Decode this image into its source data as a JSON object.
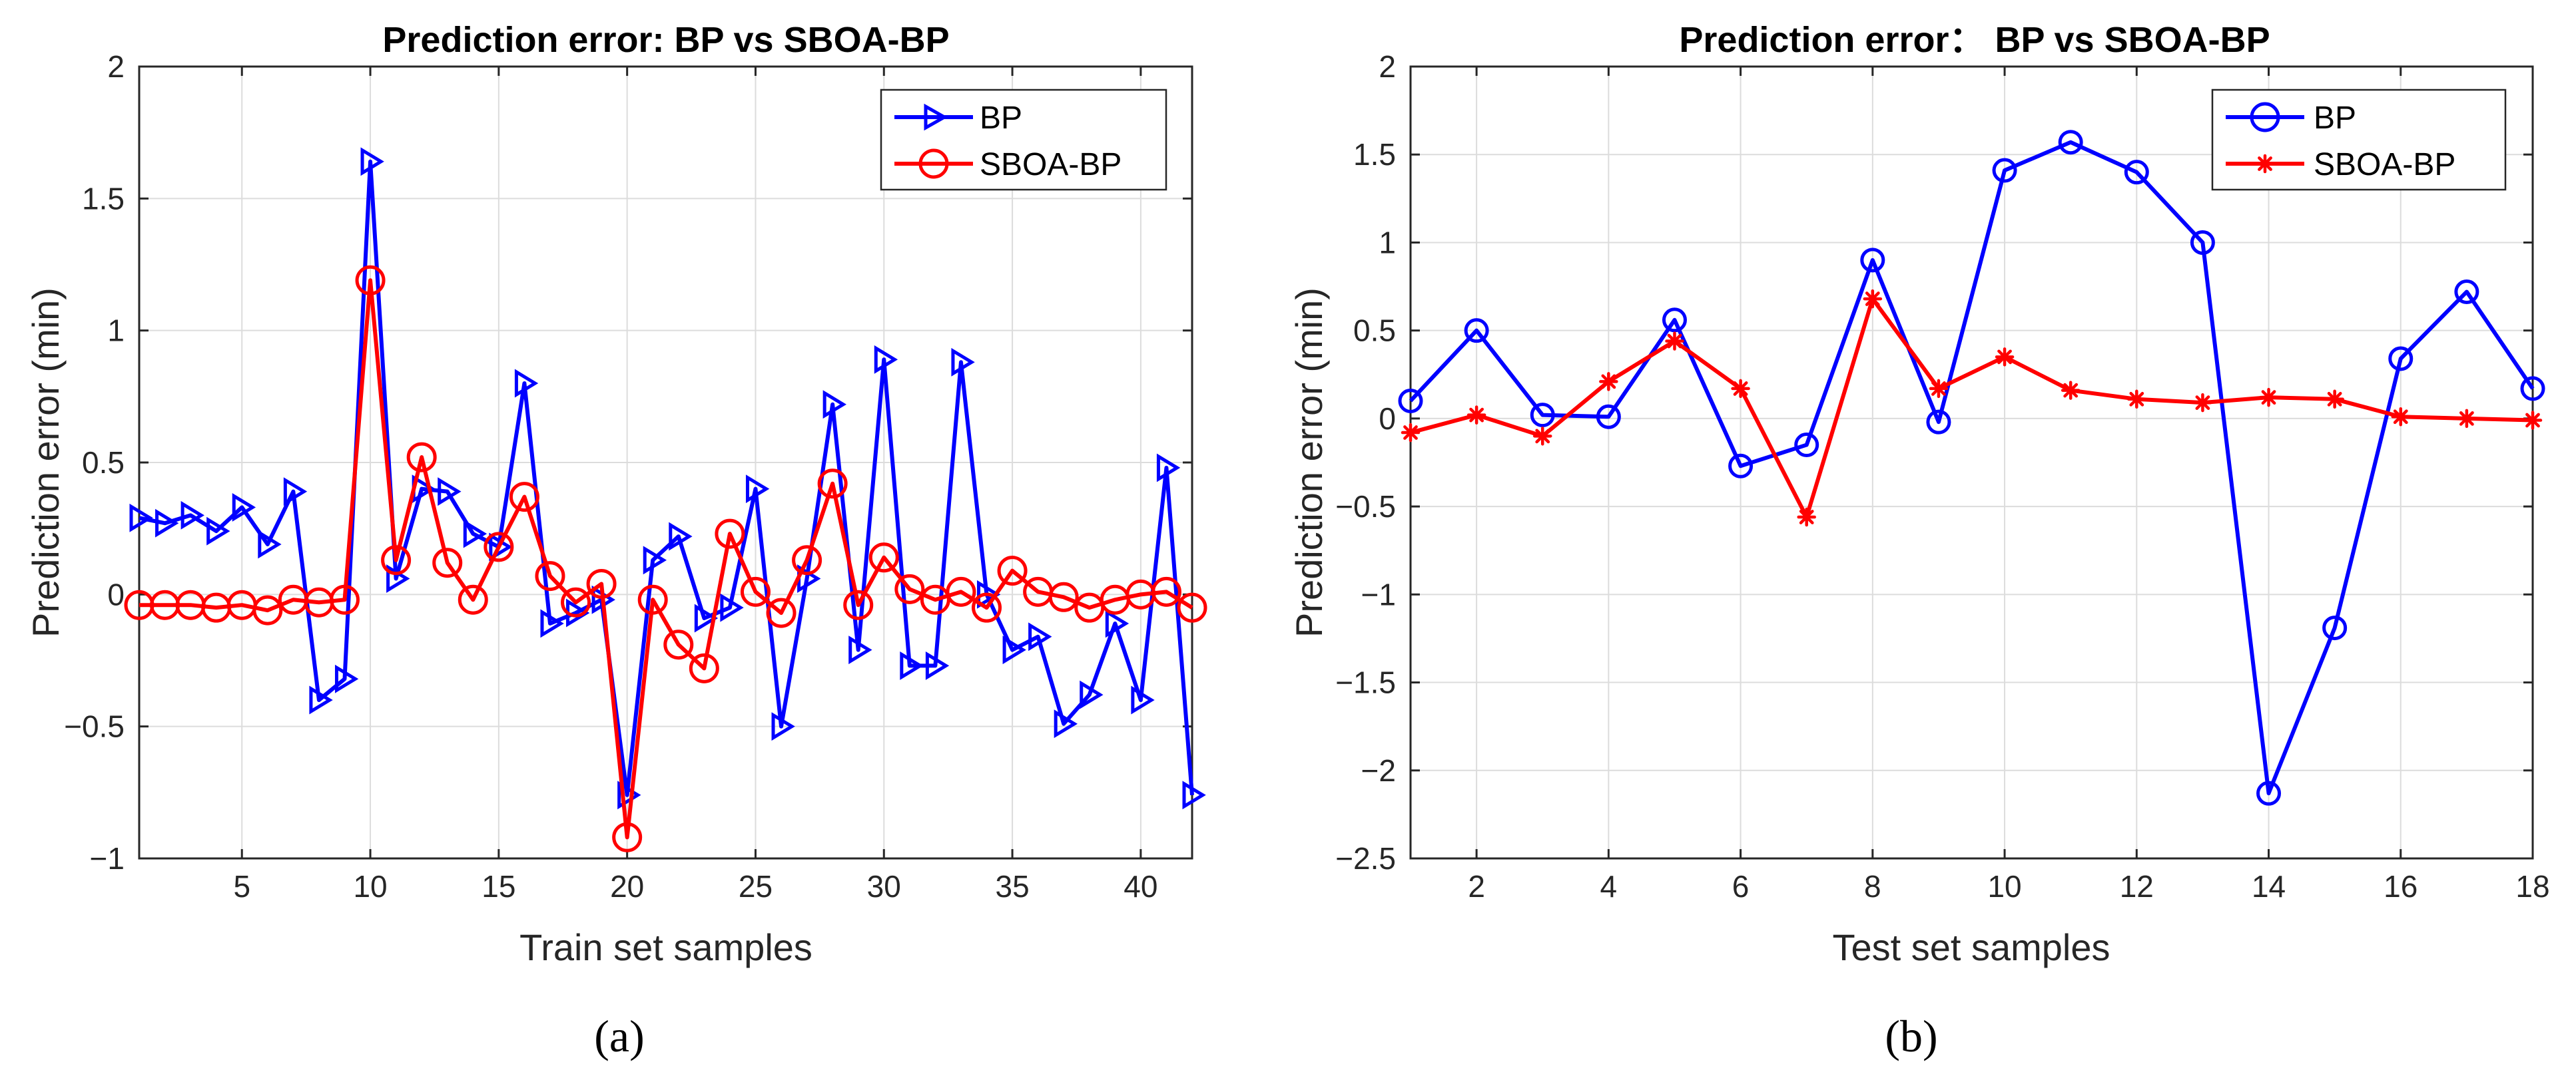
{
  "chart_data": [
    {
      "type": "line",
      "panel_label": "(a)",
      "title": "Prediction error: BP vs SBOA-BP",
      "xlabel": "Train set samples",
      "ylabel": "Prediction error (min)",
      "xlim": [
        1,
        42
      ],
      "ylim": [
        -1,
        2
      ],
      "xticks": [
        5,
        10,
        15,
        20,
        25,
        30,
        35,
        40
      ],
      "xtick_labels": [
        "5",
        "10",
        "15",
        "20",
        "25",
        "30",
        "35",
        "40"
      ],
      "yticks": [
        -1,
        -0.5,
        0,
        0.5,
        1,
        1.5,
        2
      ],
      "ytick_labels": [
        "−1",
        "−0.5",
        "0",
        "0.5",
        "1",
        "1.5",
        "2"
      ],
      "grid": true,
      "legend_position": "top-right",
      "x": [
        1,
        2,
        3,
        4,
        5,
        6,
        7,
        8,
        9,
        10,
        11,
        12,
        13,
        14,
        15,
        16,
        17,
        18,
        19,
        20,
        21,
        22,
        23,
        24,
        25,
        26,
        27,
        28,
        29,
        30,
        31,
        32,
        33,
        34,
        35,
        36,
        37,
        38,
        39,
        40,
        41,
        42
      ],
      "series": [
        {
          "name": "BP",
          "color": "#0000ff",
          "marker": "triangle-right",
          "values": [
            0.29,
            0.27,
            0.3,
            0.24,
            0.33,
            0.19,
            0.39,
            -0.4,
            -0.32,
            1.64,
            0.06,
            0.4,
            0.39,
            0.23,
            0.18,
            0.8,
            -0.11,
            -0.07,
            -0.02,
            -0.76,
            0.13,
            0.22,
            -0.09,
            -0.05,
            0.4,
            -0.5,
            0.06,
            0.72,
            -0.21,
            0.89,
            -0.27,
            -0.27,
            0.88,
            0.0,
            -0.21,
            -0.16,
            -0.49,
            -0.38,
            -0.11,
            -0.4,
            0.48,
            -0.76
          ]
        },
        {
          "name": "SBOA-BP",
          "color": "#ff0000",
          "marker": "circle",
          "values": [
            -0.04,
            -0.04,
            -0.04,
            -0.05,
            -0.04,
            -0.06,
            -0.02,
            -0.03,
            -0.02,
            1.19,
            0.13,
            0.52,
            0.12,
            -0.02,
            0.18,
            0.37,
            0.07,
            -0.03,
            0.04,
            -0.92,
            -0.02,
            -0.19,
            -0.28,
            0.23,
            0.01,
            -0.07,
            0.13,
            0.42,
            -0.04,
            0.14,
            0.02,
            -0.02,
            0.01,
            -0.05,
            0.09,
            0.01,
            -0.01,
            -0.05,
            -0.02,
            0.0,
            0.01,
            -0.05
          ]
        }
      ]
    },
    {
      "type": "line",
      "panel_label": "(b)",
      "title": "Prediction error： BP vs SBOA-BP",
      "xlabel": "Test set samples",
      "ylabel": "Prediction error (min)",
      "xlim": [
        1,
        18
      ],
      "ylim": [
        -2.5,
        2
      ],
      "xticks": [
        2,
        4,
        6,
        8,
        10,
        12,
        14,
        16,
        18
      ],
      "xtick_labels": [
        "2",
        "4",
        "6",
        "8",
        "10",
        "12",
        "14",
        "16",
        "18"
      ],
      "yticks": [
        -2.5,
        -2,
        -1.5,
        -1,
        -0.5,
        0,
        0.5,
        1,
        1.5,
        2
      ],
      "ytick_labels": [
        "−2.5",
        "−2",
        "−1.5",
        "−1",
        "−0.5",
        "0",
        "0.5",
        "1",
        "1.5",
        "2"
      ],
      "grid": true,
      "legend_position": "top-right",
      "x": [
        1,
        2,
        3,
        4,
        5,
        6,
        7,
        8,
        9,
        10,
        11,
        12,
        13,
        14,
        15,
        16,
        17,
        18
      ],
      "series": [
        {
          "name": "BP",
          "color": "#0000ff",
          "marker": "circle",
          "values": [
            0.1,
            0.5,
            0.02,
            0.01,
            0.56,
            -0.27,
            -0.15,
            0.9,
            -0.02,
            1.41,
            1.57,
            1.4,
            1.0,
            -2.13,
            -1.19,
            0.34,
            0.72,
            0.17
          ]
        },
        {
          "name": "SBOA-BP",
          "color": "#ff0000",
          "marker": "asterisk",
          "values": [
            -0.08,
            0.02,
            -0.1,
            0.21,
            0.44,
            0.17,
            -0.56,
            0.68,
            0.17,
            0.35,
            0.16,
            0.11,
            0.09,
            0.12,
            0.11,
            0.01,
            0.0,
            -0.01
          ]
        }
      ]
    }
  ]
}
